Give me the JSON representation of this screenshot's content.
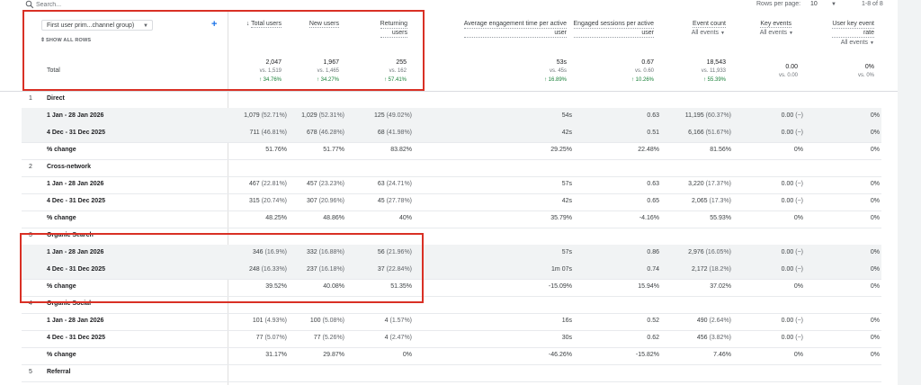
{
  "toolbar": {
    "search_placeholder": "Search...",
    "rows_per_page_label": "Rows per page:",
    "rows_per_page_value": "10",
    "pagination": "1-8 of 8"
  },
  "header": {
    "dimension_select": "First user prim...channel group)",
    "show_all_rows": "SHOW ALL ROWS",
    "total_label": "Total",
    "columns": [
      {
        "label": "Total users",
        "sorted": true,
        "total": "2,047",
        "vs": "vs. 1,519",
        "change": "34.76%"
      },
      {
        "label": "New users",
        "total": "1,967",
        "vs": "vs. 1,465",
        "change": "34.27%"
      },
      {
        "label_line1": "Returning",
        "label_line2": "users",
        "total": "255",
        "vs": "vs. 162",
        "change": "57.41%"
      },
      {
        "label_line1": "Average engagement time per active",
        "label_line2": "user",
        "total": "53s",
        "vs": "vs. 45s",
        "change": "16.89%"
      },
      {
        "label_line1": "Engaged sessions per active",
        "label_line2": "user",
        "total": "0.67",
        "vs": "vs. 0.60",
        "change": "10.26%"
      },
      {
        "label": "Event count",
        "sub": "All events",
        "total": "18,543",
        "vs": "vs. 11,933",
        "change": "55.39%"
      },
      {
        "label": "Key events",
        "sub": "All events",
        "total": "0.00",
        "vs": "vs. 0.00",
        "change": ""
      },
      {
        "label_line1": "User key event",
        "label_line2": "rate",
        "sub": "All events",
        "total": "0%",
        "vs": "vs. 0%",
        "change": ""
      }
    ]
  },
  "groups": [
    {
      "index": "1",
      "name": "Direct",
      "rows": [
        {
          "label": "1 Jan - 28 Jan 2026",
          "shade": true,
          "cells": [
            [
              "1,079",
              "(52.71%)"
            ],
            [
              "1,029",
              "(52.31%)"
            ],
            [
              "125",
              "(49.02%)"
            ],
            [
              "54s",
              ""
            ],
            [
              "0.63",
              ""
            ],
            [
              "11,195",
              "(60.37%)"
            ],
            [
              "0.00",
              "(−)"
            ],
            [
              "0%",
              ""
            ]
          ]
        },
        {
          "label": "4 Dec - 31 Dec 2025",
          "shade": true,
          "cells": [
            [
              "711",
              "(46.81%)"
            ],
            [
              "678",
              "(46.28%)"
            ],
            [
              "68",
              "(41.98%)"
            ],
            [
              "42s",
              ""
            ],
            [
              "0.51",
              ""
            ],
            [
              "6,166",
              "(51.67%)"
            ],
            [
              "0.00",
              "(−)"
            ],
            [
              "0%",
              ""
            ]
          ]
        },
        {
          "label": "% change",
          "shade": false,
          "cells": [
            [
              "51.76%",
              ""
            ],
            [
              "51.77%",
              ""
            ],
            [
              "83.82%",
              ""
            ],
            [
              "29.25%",
              ""
            ],
            [
              "22.48%",
              ""
            ],
            [
              "81.56%",
              ""
            ],
            [
              "0%",
              ""
            ],
            [
              "0%",
              ""
            ]
          ]
        }
      ]
    },
    {
      "index": "2",
      "name": "Cross-network",
      "rows": [
        {
          "label": "1 Jan - 28 Jan 2026",
          "shade": false,
          "cells": [
            [
              "467",
              "(22.81%)"
            ],
            [
              "457",
              "(23.23%)"
            ],
            [
              "63",
              "(24.71%)"
            ],
            [
              "57s",
              ""
            ],
            [
              "0.63",
              ""
            ],
            [
              "3,220",
              "(17.37%)"
            ],
            [
              "0.00",
              "(−)"
            ],
            [
              "0%",
              ""
            ]
          ]
        },
        {
          "label": "4 Dec - 31 Dec 2025",
          "shade": false,
          "cells": [
            [
              "315",
              "(20.74%)"
            ],
            [
              "307",
              "(20.96%)"
            ],
            [
              "45",
              "(27.78%)"
            ],
            [
              "42s",
              ""
            ],
            [
              "0.65",
              ""
            ],
            [
              "2,065",
              "(17.3%)"
            ],
            [
              "0.00",
              "(−)"
            ],
            [
              "0%",
              ""
            ]
          ]
        },
        {
          "label": "% change",
          "shade": false,
          "cells": [
            [
              "48.25%",
              ""
            ],
            [
              "48.86%",
              ""
            ],
            [
              "40%",
              ""
            ],
            [
              "35.79%",
              ""
            ],
            [
              "-4.16%",
              ""
            ],
            [
              "55.93%",
              ""
            ],
            [
              "0%",
              ""
            ],
            [
              "0%",
              ""
            ]
          ]
        }
      ]
    },
    {
      "index": "3",
      "name": "Organic Search",
      "rows": [
        {
          "label": "1 Jan - 28 Jan 2026",
          "shade": true,
          "cells": [
            [
              "346",
              "(16.9%)"
            ],
            [
              "332",
              "(16.88%)"
            ],
            [
              "56",
              "(21.96%)"
            ],
            [
              "57s",
              ""
            ],
            [
              "0.86",
              ""
            ],
            [
              "2,976",
              "(16.05%)"
            ],
            [
              "0.00",
              "(−)"
            ],
            [
              "0%",
              ""
            ]
          ]
        },
        {
          "label": "4 Dec - 31 Dec 2025",
          "shade": true,
          "cells": [
            [
              "248",
              "(16.33%)"
            ],
            [
              "237",
              "(16.18%)"
            ],
            [
              "37",
              "(22.84%)"
            ],
            [
              "1m 07s",
              ""
            ],
            [
              "0.74",
              ""
            ],
            [
              "2,172",
              "(18.2%)"
            ],
            [
              "0.00",
              "(−)"
            ],
            [
              "0%",
              ""
            ]
          ]
        },
        {
          "label": "% change",
          "shade": false,
          "cells": [
            [
              "39.52%",
              ""
            ],
            [
              "40.08%",
              ""
            ],
            [
              "51.35%",
              ""
            ],
            [
              "-15.09%",
              ""
            ],
            [
              "15.94%",
              ""
            ],
            [
              "37.02%",
              ""
            ],
            [
              "0%",
              ""
            ],
            [
              "0%",
              ""
            ]
          ]
        }
      ]
    },
    {
      "index": "4",
      "name": "Organic Social",
      "rows": [
        {
          "label": "1 Jan - 28 Jan 2026",
          "shade": false,
          "cells": [
            [
              "101",
              "(4.93%)"
            ],
            [
              "100",
              "(5.08%)"
            ],
            [
              "4",
              "(1.57%)"
            ],
            [
              "16s",
              ""
            ],
            [
              "0.52",
              ""
            ],
            [
              "490",
              "(2.64%)"
            ],
            [
              "0.00",
              "(−)"
            ],
            [
              "0%",
              ""
            ]
          ]
        },
        {
          "label": "4 Dec - 31 Dec 2025",
          "shade": false,
          "cells": [
            [
              "77",
              "(5.07%)"
            ],
            [
              "77",
              "(5.26%)"
            ],
            [
              "4",
              "(2.47%)"
            ],
            [
              "30s",
              ""
            ],
            [
              "0.62",
              ""
            ],
            [
              "456",
              "(3.82%)"
            ],
            [
              "0.00",
              "(−)"
            ],
            [
              "0%",
              ""
            ]
          ]
        },
        {
          "label": "% change",
          "shade": false,
          "cells": [
            [
              "31.17%",
              ""
            ],
            [
              "29.87%",
              ""
            ],
            [
              "0%",
              ""
            ],
            [
              "-46.26%",
              ""
            ],
            [
              "-15.82%",
              ""
            ],
            [
              "7.46%",
              ""
            ],
            [
              "0%",
              ""
            ],
            [
              "0%",
              ""
            ]
          ]
        }
      ]
    },
    {
      "index": "5",
      "name": "Referral",
      "rows": []
    }
  ]
}
